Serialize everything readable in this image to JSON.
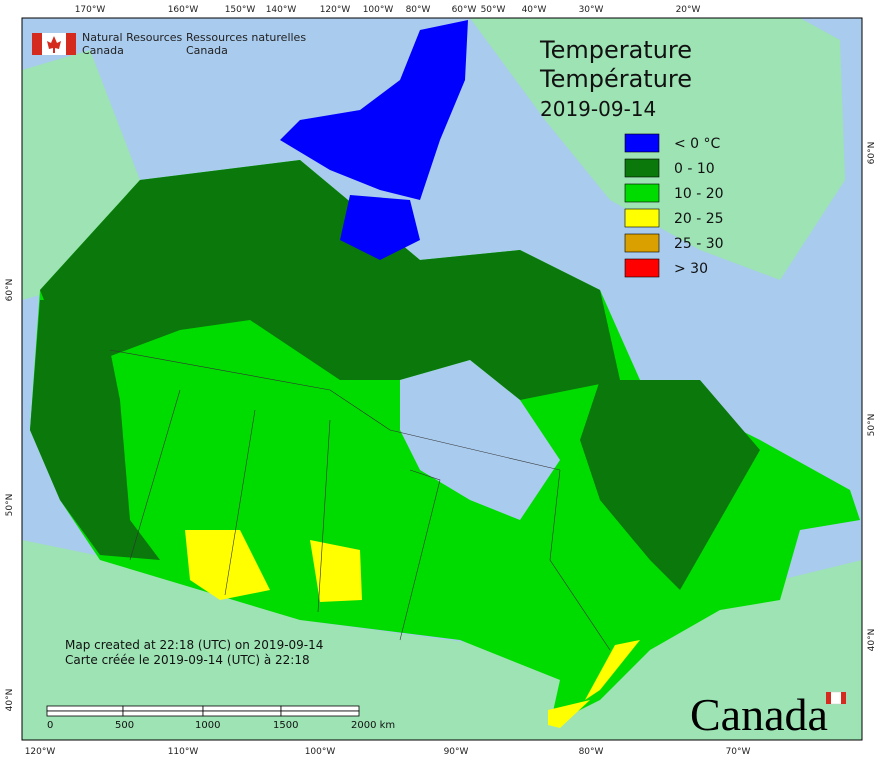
{
  "header": {
    "agency_en": [
      "Natural Resources",
      "Canada"
    ],
    "agency_fr": [
      "Ressources naturelles",
      "Canada"
    ]
  },
  "title": [
    "Temperature",
    "Température",
    "2019-09-14"
  ],
  "legend": [
    {
      "label": "< 0 °C",
      "color": "#0000ff"
    },
    {
      "label": "0 - 10",
      "color": "#0a780a"
    },
    {
      "label": "10 - 20",
      "color": "#00dc00"
    },
    {
      "label": "20 - 25",
      "color": "#ffff00"
    },
    {
      "label": "25 - 30",
      "color": "#d9a000"
    },
    {
      "label": "> 30",
      "color": "#ff0000"
    }
  ],
  "graticule": {
    "top": [
      "170°W",
      "160°W",
      "150°W",
      "140°W",
      "120°W",
      "100°W",
      "80°W",
      "60°W",
      "50°W",
      "40°W",
      "30°W",
      "20°W"
    ],
    "bottom": [
      "120°W",
      "110°W",
      "100°W",
      "90°W",
      "80°W",
      "70°W"
    ],
    "left": [
      "60°N",
      "50°N",
      "40°N"
    ],
    "right": [
      "60°N",
      "50°N",
      "40°N"
    ]
  },
  "notes": [
    "Map created at 22:18 (UTC) on 2019-09-14",
    "Carte créée le 2019-09-14 (UTC) à 22:18"
  ],
  "scale_bar": [
    "0",
    "500",
    "1000",
    "1500",
    "2000 km"
  ],
  "wordmark": "Canada"
}
